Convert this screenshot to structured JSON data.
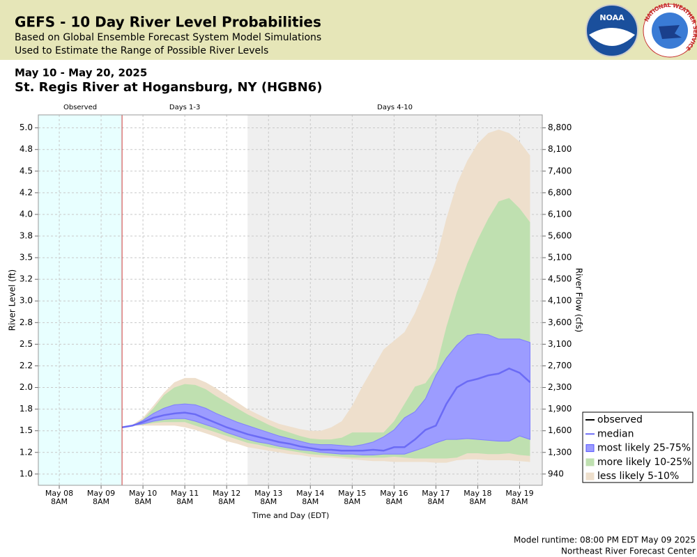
{
  "header": {
    "title": "GEFS - 10 Day River Level Probabilities",
    "subtitle_lines": [
      "Based on Global Ensemble Forecast System Model Simulations",
      "Used to Estimate the Range of Possible River Levels"
    ],
    "logos": [
      "NOAA",
      "NATIONAL WEATHER SERVICE"
    ]
  },
  "chart_data": {
    "type": "band",
    "date_range": "May 10 - May 20, 2025",
    "title": "St. Regis River at Hogansburg, NY (HGBN6)",
    "x_label": "Time and Day (EDT)",
    "y_label": "River Level (ft)",
    "y2_label": "River Flow (cfs)",
    "regions": [
      {
        "label": "Observed",
        "from": "2025-05-07T20:00",
        "to": "2025-05-09T20:00",
        "color": "#e8ffff"
      },
      {
        "label": "Days 1-3",
        "from": "2025-05-09T20:00",
        "to": "2025-05-12T20:00",
        "color": "#ffffff"
      },
      {
        "label": "Days 4-10",
        "from": "2025-05-12T20:00",
        "to": "2025-05-19T21:00",
        "color": "#efefef"
      }
    ],
    "forecast_start": "2025-05-09T20:00",
    "forecast_start_color": "#cc3333",
    "xlim": [
      "2025-05-07T20:00",
      "2025-05-19T21:00"
    ],
    "xticks": [
      {
        "value": "2025-05-08T08:00",
        "label": "May 08\n8AM"
      },
      {
        "value": "2025-05-09T08:00",
        "label": "May 09\n8AM"
      },
      {
        "value": "2025-05-10T08:00",
        "label": "May 10\n8AM"
      },
      {
        "value": "2025-05-11T08:00",
        "label": "May 11\n8AM"
      },
      {
        "value": "2025-05-12T08:00",
        "label": "May 12\n8AM"
      },
      {
        "value": "2025-05-13T08:00",
        "label": "May 13\n8AM"
      },
      {
        "value": "2025-05-14T08:00",
        "label": "May 14\n8AM"
      },
      {
        "value": "2025-05-15T08:00",
        "label": "May 15\n8AM"
      },
      {
        "value": "2025-05-16T08:00",
        "label": "May 16\n8AM"
      },
      {
        "value": "2025-05-17T08:00",
        "label": "May 17\n8AM"
      },
      {
        "value": "2025-05-18T08:00",
        "label": "May 18\n8AM"
      },
      {
        "value": "2025-05-19T08:00",
        "label": "May 19\n8AM"
      }
    ],
    "ylim": [
      0.87,
      5.15
    ],
    "yticks": [
      {
        "value": 1.0,
        "label": "1.0"
      },
      {
        "value": 1.25,
        "label": "1.2"
      },
      {
        "value": 1.5,
        "label": "1.5"
      },
      {
        "value": 1.75,
        "label": "1.8"
      },
      {
        "value": 2.0,
        "label": "2.0"
      },
      {
        "value": 2.25,
        "label": "2.2"
      },
      {
        "value": 2.5,
        "label": "2.5"
      },
      {
        "value": 2.75,
        "label": "2.8"
      },
      {
        "value": 3.0,
        "label": "3.0"
      },
      {
        "value": 3.25,
        "label": "3.2"
      },
      {
        "value": 3.5,
        "label": "3.5"
      },
      {
        "value": 3.75,
        "label": "3.8"
      },
      {
        "value": 4.0,
        "label": "4.0"
      },
      {
        "value": 4.25,
        "label": "4.2"
      },
      {
        "value": 4.5,
        "label": "4.5"
      },
      {
        "value": 4.75,
        "label": "4.8"
      },
      {
        "value": 5.0,
        "label": "5.0"
      }
    ],
    "y2ticks": [
      940,
      {
        "value": 1300,
        "label": "1,300"
      },
      {
        "value": 1600,
        "label": "1,600"
      },
      {
        "value": 1900,
        "label": "1,900"
      },
      {
        "value": 2300,
        "label": "2,300"
      },
      {
        "value": 2700,
        "label": "2,700"
      },
      {
        "value": 3100,
        "label": "3,100"
      },
      {
        "value": 3600,
        "label": "3,600"
      },
      {
        "value": 4100,
        "label": "4,100"
      },
      {
        "value": 4500,
        "label": "4,500"
      },
      {
        "value": 5100,
        "label": "5,100"
      },
      {
        "value": 5600,
        "label": "5,600"
      },
      {
        "value": 6100,
        "label": "6,100"
      },
      {
        "value": 6800,
        "label": "6,800"
      },
      {
        "value": 7400,
        "label": "7,400"
      },
      {
        "value": 8100,
        "label": "8,100"
      },
      {
        "value": 8800,
        "label": "8,800"
      }
    ],
    "grid": true,
    "legend": "lower right",
    "x": [
      "2025-05-09T20:00",
      "2025-05-10T02:00",
      "2025-05-10T08:00",
      "2025-05-10T14:00",
      "2025-05-10T20:00",
      "2025-05-11T02:00",
      "2025-05-11T08:00",
      "2025-05-11T14:00",
      "2025-05-11T20:00",
      "2025-05-12T02:00",
      "2025-05-12T08:00",
      "2025-05-12T14:00",
      "2025-05-12T20:00",
      "2025-05-13T02:00",
      "2025-05-13T08:00",
      "2025-05-13T14:00",
      "2025-05-13T20:00",
      "2025-05-14T02:00",
      "2025-05-14T08:00",
      "2025-05-14T14:00",
      "2025-05-14T20:00",
      "2025-05-15T02:00",
      "2025-05-15T08:00",
      "2025-05-15T14:00",
      "2025-05-15T20:00",
      "2025-05-16T02:00",
      "2025-05-16T08:00",
      "2025-05-16T14:00",
      "2025-05-16T20:00",
      "2025-05-17T02:00",
      "2025-05-17T08:00",
      "2025-05-17T14:00",
      "2025-05-17T20:00",
      "2025-05-18T02:00",
      "2025-05-18T08:00",
      "2025-05-18T14:00",
      "2025-05-18T20:00",
      "2025-05-19T02:00",
      "2025-05-19T08:00",
      "2025-05-19T14:00"
    ],
    "series": [
      {
        "name": "observed",
        "color": "#000000"
      },
      {
        "name": "median",
        "color": "#6b6bf5",
        "values": [
          1.54,
          1.56,
          1.6,
          1.65,
          1.68,
          1.7,
          1.71,
          1.69,
          1.64,
          1.59,
          1.54,
          1.5,
          1.46,
          1.43,
          1.4,
          1.37,
          1.35,
          1.32,
          1.3,
          1.28,
          1.28,
          1.27,
          1.27,
          1.27,
          1.28,
          1.27,
          1.31,
          1.31,
          1.4,
          1.51,
          1.56,
          1.81,
          2.0,
          2.07,
          2.1,
          2.14,
          2.16,
          2.22,
          2.17,
          2.06
        ]
      },
      {
        "name": "most likely 25-75%",
        "color": "#9c9cff",
        "low": [
          1.54,
          1.56,
          1.58,
          1.61,
          1.63,
          1.64,
          1.64,
          1.61,
          1.57,
          1.53,
          1.48,
          1.44,
          1.4,
          1.37,
          1.35,
          1.32,
          1.3,
          1.28,
          1.27,
          1.25,
          1.24,
          1.23,
          1.23,
          1.22,
          1.22,
          1.23,
          1.23,
          1.23,
          1.27,
          1.31,
          1.36,
          1.4,
          1.4,
          1.41,
          1.4,
          1.39,
          1.38,
          1.38,
          1.44,
          1.4
        ],
        "high": [
          1.54,
          1.56,
          1.62,
          1.7,
          1.76,
          1.8,
          1.81,
          1.8,
          1.76,
          1.7,
          1.65,
          1.6,
          1.56,
          1.52,
          1.48,
          1.44,
          1.41,
          1.38,
          1.35,
          1.34,
          1.34,
          1.33,
          1.32,
          1.34,
          1.37,
          1.43,
          1.51,
          1.65,
          1.72,
          1.87,
          2.14,
          2.34,
          2.49,
          2.6,
          2.62,
          2.61,
          2.56,
          2.56,
          2.56,
          2.52
        ]
      },
      {
        "name": "more likely 10-25%",
        "color": "#bfe0b0",
        "low": [
          1.54,
          1.56,
          1.57,
          1.59,
          1.6,
          1.6,
          1.6,
          1.56,
          1.52,
          1.48,
          1.44,
          1.4,
          1.36,
          1.34,
          1.31,
          1.29,
          1.27,
          1.25,
          1.23,
          1.22,
          1.21,
          1.2,
          1.19,
          1.19,
          1.19,
          1.19,
          1.2,
          1.19,
          1.18,
          1.18,
          1.18,
          1.18,
          1.19,
          1.24,
          1.24,
          1.23,
          1.23,
          1.24,
          1.22,
          1.21
        ],
        "high": [
          1.54,
          1.56,
          1.63,
          1.76,
          1.91,
          2.0,
          2.04,
          2.03,
          1.98,
          1.9,
          1.83,
          1.76,
          1.69,
          1.63,
          1.57,
          1.52,
          1.48,
          1.44,
          1.41,
          1.4,
          1.4,
          1.42,
          1.48,
          1.48,
          1.48,
          1.48,
          1.61,
          1.81,
          2.01,
          2.05,
          2.22,
          2.7,
          3.1,
          3.43,
          3.71,
          3.95,
          4.15,
          4.19,
          4.07,
          3.91
        ]
      },
      {
        "name": "less likely 5-10%",
        "color": "#eedfcc",
        "low": [
          1.54,
          1.56,
          1.56,
          1.56,
          1.56,
          1.56,
          1.54,
          1.51,
          1.47,
          1.43,
          1.38,
          1.35,
          1.31,
          1.29,
          1.27,
          1.25,
          1.23,
          1.22,
          1.2,
          1.19,
          1.19,
          1.18,
          1.17,
          1.16,
          1.15,
          1.15,
          1.14,
          1.14,
          1.14,
          1.14,
          1.13,
          1.13,
          1.16,
          1.17,
          1.17,
          1.16,
          1.16,
          1.16,
          1.15,
          1.14
        ],
        "high": [
          1.54,
          1.57,
          1.65,
          1.79,
          1.94,
          2.06,
          2.11,
          2.11,
          2.06,
          1.99,
          1.91,
          1.83,
          1.75,
          1.69,
          1.63,
          1.58,
          1.55,
          1.52,
          1.5,
          1.5,
          1.54,
          1.61,
          1.79,
          2.02,
          2.23,
          2.44,
          2.54,
          2.64,
          2.86,
          3.15,
          3.47,
          3.95,
          4.35,
          4.62,
          4.82,
          4.94,
          4.98,
          4.94,
          4.84,
          4.68
        ]
      }
    ]
  },
  "footer": {
    "lines": [
      "Model runtime: 08:00 PM EDT May 09 2025",
      "Northeast River Forecast Center"
    ]
  }
}
